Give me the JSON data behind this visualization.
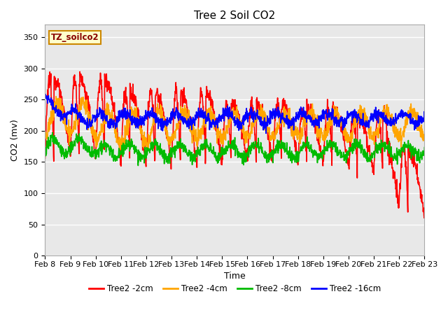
{
  "title": "Tree 2 Soil CO2",
  "xlabel": "Time",
  "ylabel": "CO2 (mv)",
  "ylim": [
    0,
    370
  ],
  "yticks": [
    0,
    50,
    100,
    150,
    200,
    250,
    300,
    350
  ],
  "x_tick_labels": [
    "Feb 8",
    "Feb 9",
    "Feb 10",
    "Feb 11",
    "Feb 12",
    "Feb 13",
    "Feb 14",
    "Feb 15",
    "Feb 16",
    "Feb 17",
    "Feb 18",
    "Feb 19",
    "Feb 20",
    "Feb 21",
    "Feb 22",
    "Feb 23"
  ],
  "legend_label": "TZ_soilco2",
  "series_labels": [
    "Tree2 -2cm",
    "Tree2 -4cm",
    "Tree2 -8cm",
    "Tree2 -16cm"
  ],
  "colors": [
    "#ff0000",
    "#ffa500",
    "#00bb00",
    "#0000ff"
  ],
  "linewidths": [
    1.2,
    1.2,
    1.2,
    1.2
  ],
  "plot_bg_color": "#e8e8e8",
  "grid_color": "#ffffff",
  "title_fontsize": 11,
  "axis_label_fontsize": 9,
  "tick_fontsize": 8
}
